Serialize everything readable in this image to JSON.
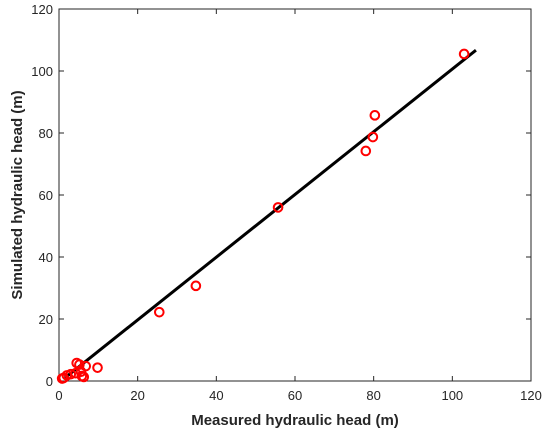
{
  "chart_data": {
    "type": "scatter",
    "xlabel": "Measured hydraulic head (m)",
    "ylabel": "Simulated hydraulic head (m)",
    "xlim": [
      0,
      120
    ],
    "ylim": [
      0,
      120
    ],
    "xticks": [
      0,
      20,
      40,
      60,
      80,
      100,
      120
    ],
    "yticks": [
      0,
      20,
      40,
      60,
      80,
      100,
      120
    ],
    "grid": false,
    "legend": "none",
    "series": [
      {
        "marker": "circle-open",
        "color": "#ff0000",
        "points": [
          [
            0.8,
            0.8
          ],
          [
            1.2,
            1.0
          ],
          [
            2.0,
            1.8
          ],
          [
            3.0,
            2.2
          ],
          [
            4.2,
            2.5
          ],
          [
            4.5,
            5.8
          ],
          [
            5.2,
            5.3
          ],
          [
            5.6,
            3.0
          ],
          [
            5.8,
            1.6
          ],
          [
            6.3,
            1.3
          ],
          [
            6.8,
            4.8
          ],
          [
            9.8,
            4.3
          ],
          [
            25.5,
            22.2
          ],
          [
            34.8,
            30.7
          ],
          [
            55.7,
            56.0
          ],
          [
            78.0,
            74.2
          ],
          [
            79.8,
            78.7
          ],
          [
            80.3,
            85.7
          ],
          [
            103.0,
            105.5
          ]
        ]
      },
      {
        "type": "line",
        "color": "#000000",
        "points": [
          [
            1.5,
            1.0
          ],
          [
            106.0,
            106.7
          ]
        ]
      }
    ]
  }
}
